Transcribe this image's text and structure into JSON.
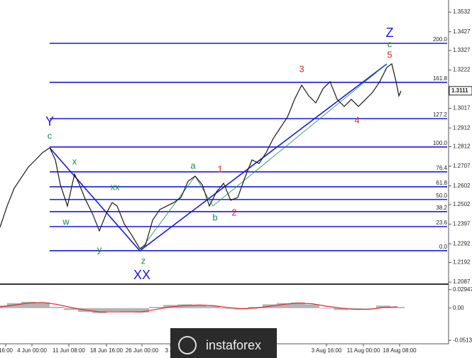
{
  "chart_data": {
    "type": "line",
    "x": [
      0,
      10,
      20,
      30,
      40,
      50,
      60,
      70,
      78,
      85,
      95,
      105,
      112,
      120,
      130,
      140,
      150,
      158,
      165,
      175,
      185,
      197,
      205,
      215,
      225,
      235,
      245,
      255,
      265,
      275,
      285,
      295,
      305,
      315,
      325,
      335,
      345,
      355,
      365,
      375,
      385,
      395,
      405,
      415,
      425,
      435,
      445,
      455,
      465,
      475,
      485,
      495,
      505,
      515,
      525,
      535,
      545,
      552,
      558,
      562,
      565
    ],
    "series": [
      {
        "color": "#1a1a1a",
        "values": [
          1.238,
          1.2494,
          1.2589,
          1.2646,
          1.2703,
          1.2741,
          1.278,
          1.2806,
          1.2741,
          1.2608,
          1.2494,
          1.2665,
          1.2608,
          1.2532,
          1.2456,
          1.2361,
          1.2456,
          1.2513,
          1.2494,
          1.2399,
          1.2342,
          1.2266,
          1.2285,
          1.2418,
          1.2475,
          1.2494,
          1.2513,
          1.254,
          1.2627,
          1.2654,
          1.2608,
          1.2494,
          1.257,
          1.2616,
          1.2525,
          1.254,
          1.2646,
          1.2741,
          1.2722,
          1.278,
          1.2856,
          1.2913,
          1.297,
          1.3065,
          1.3141,
          1.3084,
          1.3046,
          1.3122,
          1.316,
          1.3065,
          1.3027,
          1.3065,
          1.3027,
          1.3065,
          1.3103,
          1.316,
          1.3236,
          1.3255,
          1.316,
          1.3084,
          1.311
        ]
      }
    ],
    "xlim": [
      0,
      632
    ],
    "ylim": [
      1.2076,
      1.3597
    ],
    "yticks": [
      1.3532,
      1.3427,
      1.3327,
      1.3222,
      1.3017,
      1.2912,
      1.2812,
      1.2707,
      1.2602,
      1.2502,
      1.2397,
      1.2292,
      1.2192,
      1.2087
    ],
    "xticks": [
      {
        "value": 8,
        "label": "16:00"
      },
      {
        "value": 45,
        "label": "4 Jun 00:00"
      },
      {
        "value": 97,
        "label": "11 Jun 08:00"
      },
      {
        "value": 150,
        "label": "18 Jun 16:00"
      },
      {
        "value": 200,
        "label": "26 Jun 00:00"
      },
      {
        "value": 240,
        "label": "3 Ju"
      },
      {
        "value": 460,
        "label": "3 Aug 16:00"
      },
      {
        "value": 512,
        "label": "11 Aug 00:00"
      },
      {
        "value": 563,
        "label": "18 Aug 08:00"
      }
    ],
    "last_price": 1.3111,
    "fib_levels": [
      {
        "label": "200.0",
        "price": 1.3365
      },
      {
        "label": "161.8",
        "price": 1.3156
      },
      {
        "label": "127.2",
        "price": 1.2962
      },
      {
        "label": "100.0",
        "price": 1.281
      },
      {
        "label": "76.4",
        "price": 1.2677
      },
      {
        "label": "61.8",
        "price": 1.2597
      },
      {
        "label": "50.0",
        "price": 1.2529
      },
      {
        "label": "38.2",
        "price": 1.2464
      },
      {
        "label": "23.6",
        "price": 1.2384
      },
      {
        "label": "0.0",
        "price": 1.2255
      }
    ],
    "fib_color": "#1a1add",
    "annotations": [
      {
        "text": "Z",
        "color": "#1a1add"
      },
      {
        "text": "c",
        "color": "#12913a"
      },
      {
        "text": "5",
        "color": "#e0262c"
      },
      {
        "text": "3",
        "color": "#e0262c"
      },
      {
        "text": "4",
        "color": "#e0262c"
      },
      {
        "text": "Y",
        "color": "#1a1add"
      },
      {
        "text": "c",
        "color": "#12913a"
      },
      {
        "text": "x",
        "color": "#12913a"
      },
      {
        "text": "xx",
        "color": "#12913a"
      },
      {
        "text": "w",
        "color": "#12913a"
      },
      {
        "text": "y",
        "color": "#12913a"
      },
      {
        "text": "z",
        "color": "#12913a"
      },
      {
        "text": "XX",
        "color": "#1a1add"
      },
      {
        "text": "a",
        "color": "#12913a"
      },
      {
        "text": "b",
        "color": "#12913a"
      },
      {
        "text": "1",
        "color": "#e0262c"
      },
      {
        "text": "2",
        "color": "#e0262c"
      }
    ],
    "oscillator": {
      "x": [
        0,
        20,
        40,
        60,
        80,
        100,
        120,
        140,
        160,
        180,
        200,
        220,
        240,
        260,
        280,
        300,
        320,
        340,
        360,
        380,
        400,
        420,
        440,
        460,
        480,
        500,
        520,
        540,
        560
      ],
      "histogram": [
        0.004,
        0.008,
        0.01,
        0.009,
        0.002,
        -0.003,
        -0.006,
        -0.008,
        -0.005,
        -0.006,
        -0.007,
        0.002,
        0.005,
        0.006,
        0.005,
        0.003,
        -0.001,
        -0.002,
        0.002,
        0.006,
        0.008,
        0.009,
        0.006,
        -0.001,
        -0.003,
        -0.002,
        -0.001,
        0.004,
        0.002
      ],
      "signal": [
        0.002,
        0.005,
        0.008,
        0.009,
        0.006,
        0.001,
        -0.003,
        -0.006,
        -0.006,
        -0.006,
        -0.006,
        -0.002,
        0.002,
        0.004,
        0.005,
        0.004,
        0.001,
        -0.001,
        0.0,
        0.003,
        0.006,
        0.008,
        0.007,
        0.003,
        0.0,
        -0.002,
        -0.002,
        0.001,
        0.002
      ],
      "histogram_color": "#b4b4b4",
      "signal_color": "#e0262c",
      "ylim": [
        -0.0545,
        0.0359
      ],
      "yticks": [
        0.02947,
        {
          "value": 0,
          "label": "0.00"
        },
        -0.05133
      ]
    },
    "watermark": "instaforex"
  }
}
